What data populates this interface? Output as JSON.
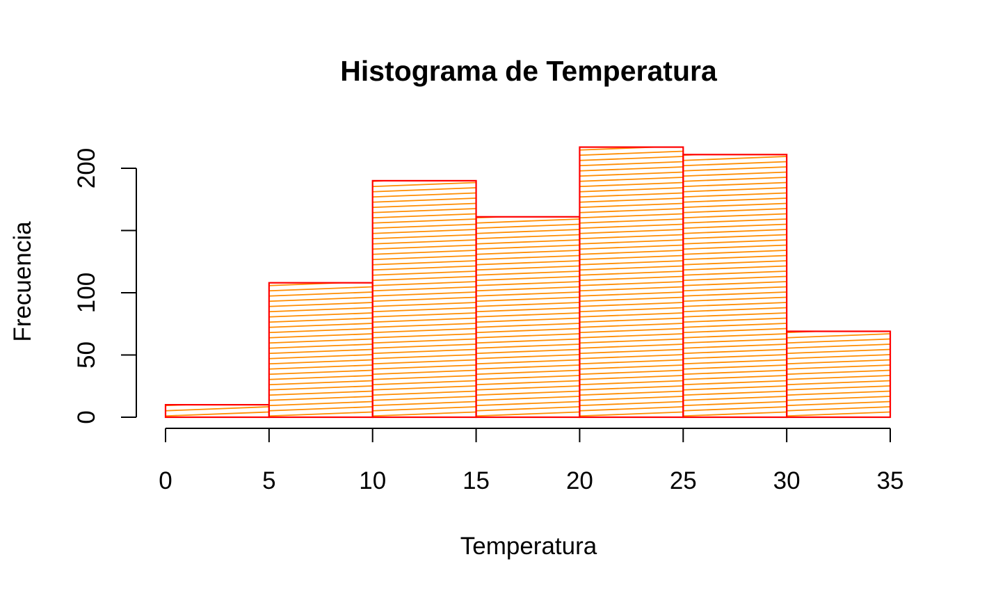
{
  "chart_data": {
    "type": "bar",
    "title": "Histograma de Temperatura",
    "xlabel": "Temperatura",
    "ylabel": "Frecuencia",
    "bins": [
      {
        "from": 0,
        "to": 5,
        "value": 10
      },
      {
        "from": 5,
        "to": 10,
        "value": 108
      },
      {
        "from": 10,
        "to": 15,
        "value": 190
      },
      {
        "from": 15,
        "to": 20,
        "value": 161
      },
      {
        "from": 20,
        "to": 25,
        "value": 217
      },
      {
        "from": 25,
        "to": 30,
        "value": 211
      },
      {
        "from": 30,
        "to": 35,
        "value": 69
      }
    ],
    "xlim": [
      0,
      35
    ],
    "ylim": [
      0,
      217
    ],
    "x_ticks": [
      0,
      5,
      10,
      15,
      20,
      25,
      30,
      35
    ],
    "x_tick_labels": [
      "0",
      "5",
      "10",
      "15",
      "20",
      "25",
      "30",
      "35"
    ],
    "y_ticks": [
      0,
      50,
      100,
      150,
      200
    ],
    "y_tick_labels": [
      "0",
      "50",
      "100",
      "",
      "200"
    ],
    "grid": false,
    "colors": {
      "border": "#ff0000",
      "hatch": "#ff8c00",
      "axis": "#000000",
      "background": "#ffffff"
    }
  }
}
